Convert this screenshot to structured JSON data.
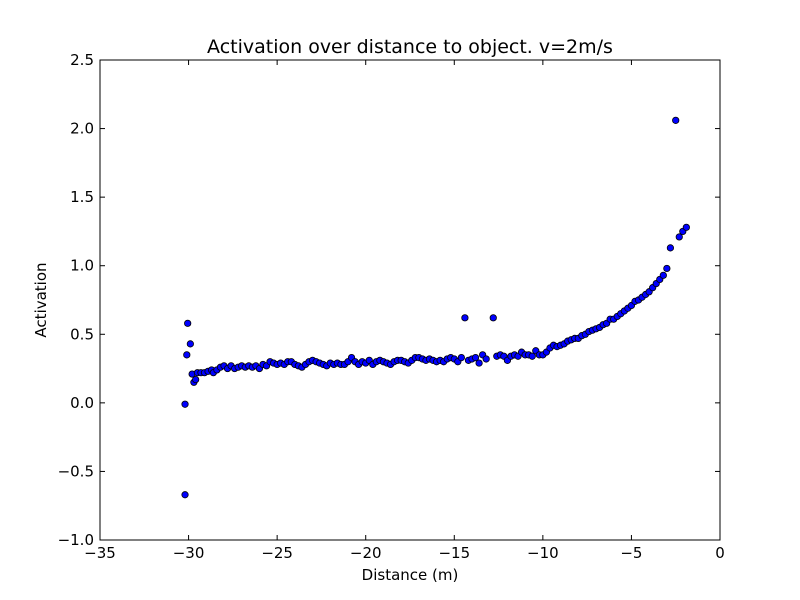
{
  "chart_data": {
    "type": "scatter",
    "title": "Activation over distance to object. v=2m/s",
    "xlabel": "Distance (m)",
    "ylabel": "Activation",
    "xlim": [
      -35,
      0
    ],
    "ylim": [
      -1.0,
      2.5
    ],
    "xticks": [
      -35,
      -30,
      -25,
      -20,
      -15,
      -10,
      -5,
      0
    ],
    "xtick_labels": [
      "−35",
      "−30",
      "−25",
      "−20",
      "−15",
      "−10",
      "−5",
      "0"
    ],
    "yticks": [
      -1.0,
      -0.5,
      0.0,
      0.5,
      1.0,
      1.5,
      2.0,
      2.5
    ],
    "ytick_labels": [
      "−1.0",
      "−0.5",
      "0.0",
      "0.5",
      "1.0",
      "1.5",
      "2.0",
      "2.5"
    ],
    "grid": false,
    "marker_color": "#0000ff",
    "marker_edge_color": "#000000",
    "points": [
      [
        -30.2,
        -0.67
      ],
      [
        -30.2,
        -0.01
      ],
      [
        -30.1,
        0.35
      ],
      [
        -30.05,
        0.58
      ],
      [
        -29.9,
        0.43
      ],
      [
        -29.8,
        0.21
      ],
      [
        -29.7,
        0.15
      ],
      [
        -29.6,
        0.17
      ],
      [
        -29.5,
        0.22
      ],
      [
        -29.3,
        0.22
      ],
      [
        -29.1,
        0.22
      ],
      [
        -28.9,
        0.23
      ],
      [
        -28.7,
        0.24
      ],
      [
        -28.6,
        0.22
      ],
      [
        -28.4,
        0.24
      ],
      [
        -28.2,
        0.26
      ],
      [
        -28.0,
        0.27
      ],
      [
        -27.8,
        0.25
      ],
      [
        -27.6,
        0.27
      ],
      [
        -27.4,
        0.25
      ],
      [
        -27.2,
        0.26
      ],
      [
        -27.0,
        0.27
      ],
      [
        -26.8,
        0.26
      ],
      [
        -26.6,
        0.27
      ],
      [
        -26.4,
        0.26
      ],
      [
        -26.2,
        0.27
      ],
      [
        -26.0,
        0.25
      ],
      [
        -25.8,
        0.28
      ],
      [
        -25.6,
        0.27
      ],
      [
        -25.4,
        0.3
      ],
      [
        -25.2,
        0.29
      ],
      [
        -25.0,
        0.28
      ],
      [
        -24.8,
        0.29
      ],
      [
        -24.6,
        0.28
      ],
      [
        -24.4,
        0.3
      ],
      [
        -24.2,
        0.3
      ],
      [
        -24.0,
        0.28
      ],
      [
        -23.8,
        0.27
      ],
      [
        -23.6,
        0.26
      ],
      [
        -23.4,
        0.28
      ],
      [
        -23.2,
        0.3
      ],
      [
        -23.0,
        0.31
      ],
      [
        -22.8,
        0.3
      ],
      [
        -22.6,
        0.29
      ],
      [
        -22.4,
        0.28
      ],
      [
        -22.2,
        0.27
      ],
      [
        -22.0,
        0.29
      ],
      [
        -21.8,
        0.28
      ],
      [
        -21.6,
        0.29
      ],
      [
        -21.4,
        0.28
      ],
      [
        -21.2,
        0.28
      ],
      [
        -21.0,
        0.3
      ],
      [
        -20.8,
        0.33
      ],
      [
        -20.6,
        0.3
      ],
      [
        -20.4,
        0.28
      ],
      [
        -20.2,
        0.3
      ],
      [
        -20.0,
        0.29
      ],
      [
        -19.8,
        0.31
      ],
      [
        -19.6,
        0.28
      ],
      [
        -19.4,
        0.3
      ],
      [
        -19.2,
        0.31
      ],
      [
        -19.0,
        0.3
      ],
      [
        -18.8,
        0.29
      ],
      [
        -18.6,
        0.28
      ],
      [
        -18.4,
        0.3
      ],
      [
        -18.2,
        0.31
      ],
      [
        -18.0,
        0.31
      ],
      [
        -17.8,
        0.3
      ],
      [
        -17.6,
        0.29
      ],
      [
        -17.4,
        0.31
      ],
      [
        -17.2,
        0.33
      ],
      [
        -17.0,
        0.33
      ],
      [
        -16.8,
        0.32
      ],
      [
        -16.6,
        0.31
      ],
      [
        -16.4,
        0.32
      ],
      [
        -16.2,
        0.31
      ],
      [
        -16.0,
        0.3
      ],
      [
        -15.8,
        0.31
      ],
      [
        -15.6,
        0.3
      ],
      [
        -15.4,
        0.32
      ],
      [
        -15.2,
        0.33
      ],
      [
        -15.0,
        0.32
      ],
      [
        -14.8,
        0.3
      ],
      [
        -14.6,
        0.33
      ],
      [
        -14.4,
        0.62
      ],
      [
        -14.2,
        0.31
      ],
      [
        -14.0,
        0.32
      ],
      [
        -13.8,
        0.33
      ],
      [
        -13.6,
        0.29
      ],
      [
        -13.4,
        0.35
      ],
      [
        -13.2,
        0.32
      ],
      [
        -12.8,
        0.62
      ],
      [
        -12.6,
        0.34
      ],
      [
        -12.4,
        0.35
      ],
      [
        -12.2,
        0.34
      ],
      [
        -12.0,
        0.31
      ],
      [
        -11.8,
        0.34
      ],
      [
        -11.6,
        0.35
      ],
      [
        -11.4,
        0.34
      ],
      [
        -11.2,
        0.37
      ],
      [
        -11.0,
        0.35
      ],
      [
        -10.8,
        0.35
      ],
      [
        -10.6,
        0.34
      ],
      [
        -10.4,
        0.38
      ],
      [
        -10.2,
        0.35
      ],
      [
        -10.0,
        0.35
      ],
      [
        -9.8,
        0.37
      ],
      [
        -9.6,
        0.4
      ],
      [
        -9.4,
        0.42
      ],
      [
        -9.2,
        0.41
      ],
      [
        -9.0,
        0.42
      ],
      [
        -8.8,
        0.43
      ],
      [
        -8.6,
        0.45
      ],
      [
        -8.4,
        0.46
      ],
      [
        -8.2,
        0.47
      ],
      [
        -8.0,
        0.47
      ],
      [
        -7.8,
        0.49
      ],
      [
        -7.6,
        0.5
      ],
      [
        -7.4,
        0.52
      ],
      [
        -7.2,
        0.53
      ],
      [
        -7.0,
        0.54
      ],
      [
        -6.8,
        0.55
      ],
      [
        -6.6,
        0.57
      ],
      [
        -6.4,
        0.58
      ],
      [
        -6.2,
        0.61
      ],
      [
        -6.0,
        0.61
      ],
      [
        -5.8,
        0.63
      ],
      [
        -5.6,
        0.65
      ],
      [
        -5.4,
        0.67
      ],
      [
        -5.2,
        0.69
      ],
      [
        -5.0,
        0.71
      ],
      [
        -4.8,
        0.74
      ],
      [
        -4.6,
        0.75
      ],
      [
        -4.4,
        0.77
      ],
      [
        -4.2,
        0.79
      ],
      [
        -4.0,
        0.81
      ],
      [
        -3.8,
        0.84
      ],
      [
        -3.6,
        0.87
      ],
      [
        -3.4,
        0.9
      ],
      [
        -3.2,
        0.93
      ],
      [
        -3.0,
        0.98
      ],
      [
        -2.8,
        1.13
      ],
      [
        -2.5,
        2.06
      ],
      [
        -2.3,
        1.21
      ],
      [
        -2.1,
        1.25
      ],
      [
        -1.9,
        1.28
      ]
    ]
  }
}
